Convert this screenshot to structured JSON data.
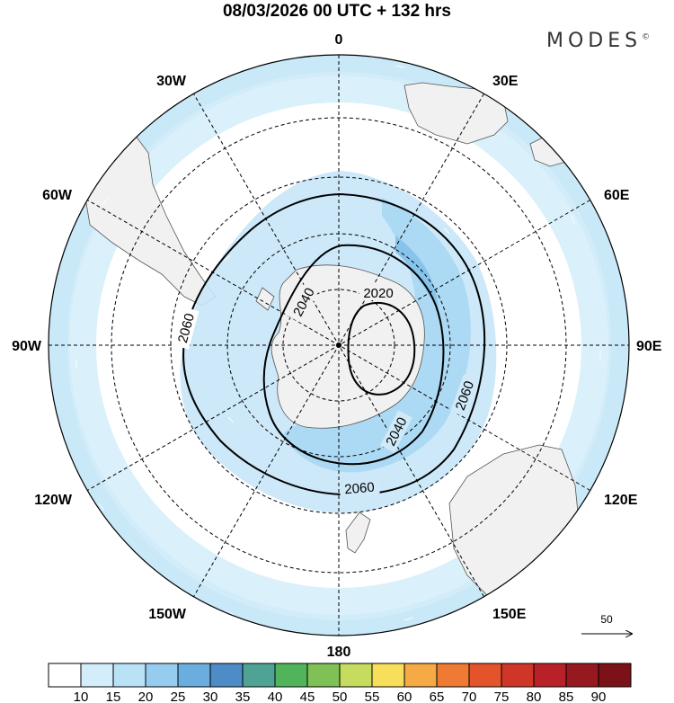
{
  "title": "08/03/2026  00 UTC  + 132 hrs",
  "brand": {
    "name": "MODES",
    "mark": "©"
  },
  "map": {
    "projection": "south polar stereographic",
    "longitude_labels": {
      "top": "0",
      "bottom": "180",
      "left": "90W",
      "right": "90E",
      "w30": "30W",
      "w60": "60W",
      "w120": "120W",
      "w150": "150W",
      "e30": "30E",
      "e60": "60E",
      "e120": "120E",
      "e150": "150E"
    },
    "contours": [
      {
        "level": "2020",
        "label": "2020"
      },
      {
        "level": "2040",
        "label": "2040"
      },
      {
        "level": "2040",
        "label": "2040"
      },
      {
        "level": "2060",
        "label": "2060"
      },
      {
        "level": "2060",
        "label": "2060"
      },
      {
        "level": "2060",
        "label": "2060"
      }
    ],
    "wind_reference": "50"
  },
  "colorbar": {
    "ticks": [
      "10",
      "15",
      "20",
      "25",
      "30",
      "35",
      "40",
      "45",
      "50",
      "55",
      "60",
      "65",
      "70",
      "75",
      "80",
      "85",
      "90"
    ],
    "colors": [
      "#ffffff",
      "#d4edfb",
      "#b9e2f7",
      "#95ccef",
      "#6aaddf",
      "#4d8cc6",
      "#4ea394",
      "#52b45a",
      "#7fc154",
      "#c5dc5f",
      "#f7df5b",
      "#f5aa45",
      "#ee7a33",
      "#e4542b",
      "#d03628",
      "#b82127",
      "#96191f"
    ]
  },
  "colors": {
    "pale_blue": "#d4edfb",
    "light_blue": "#b9e2f7",
    "mid_blue": "#95ccef",
    "land": "#f1f1f1",
    "coast": "#555555"
  }
}
